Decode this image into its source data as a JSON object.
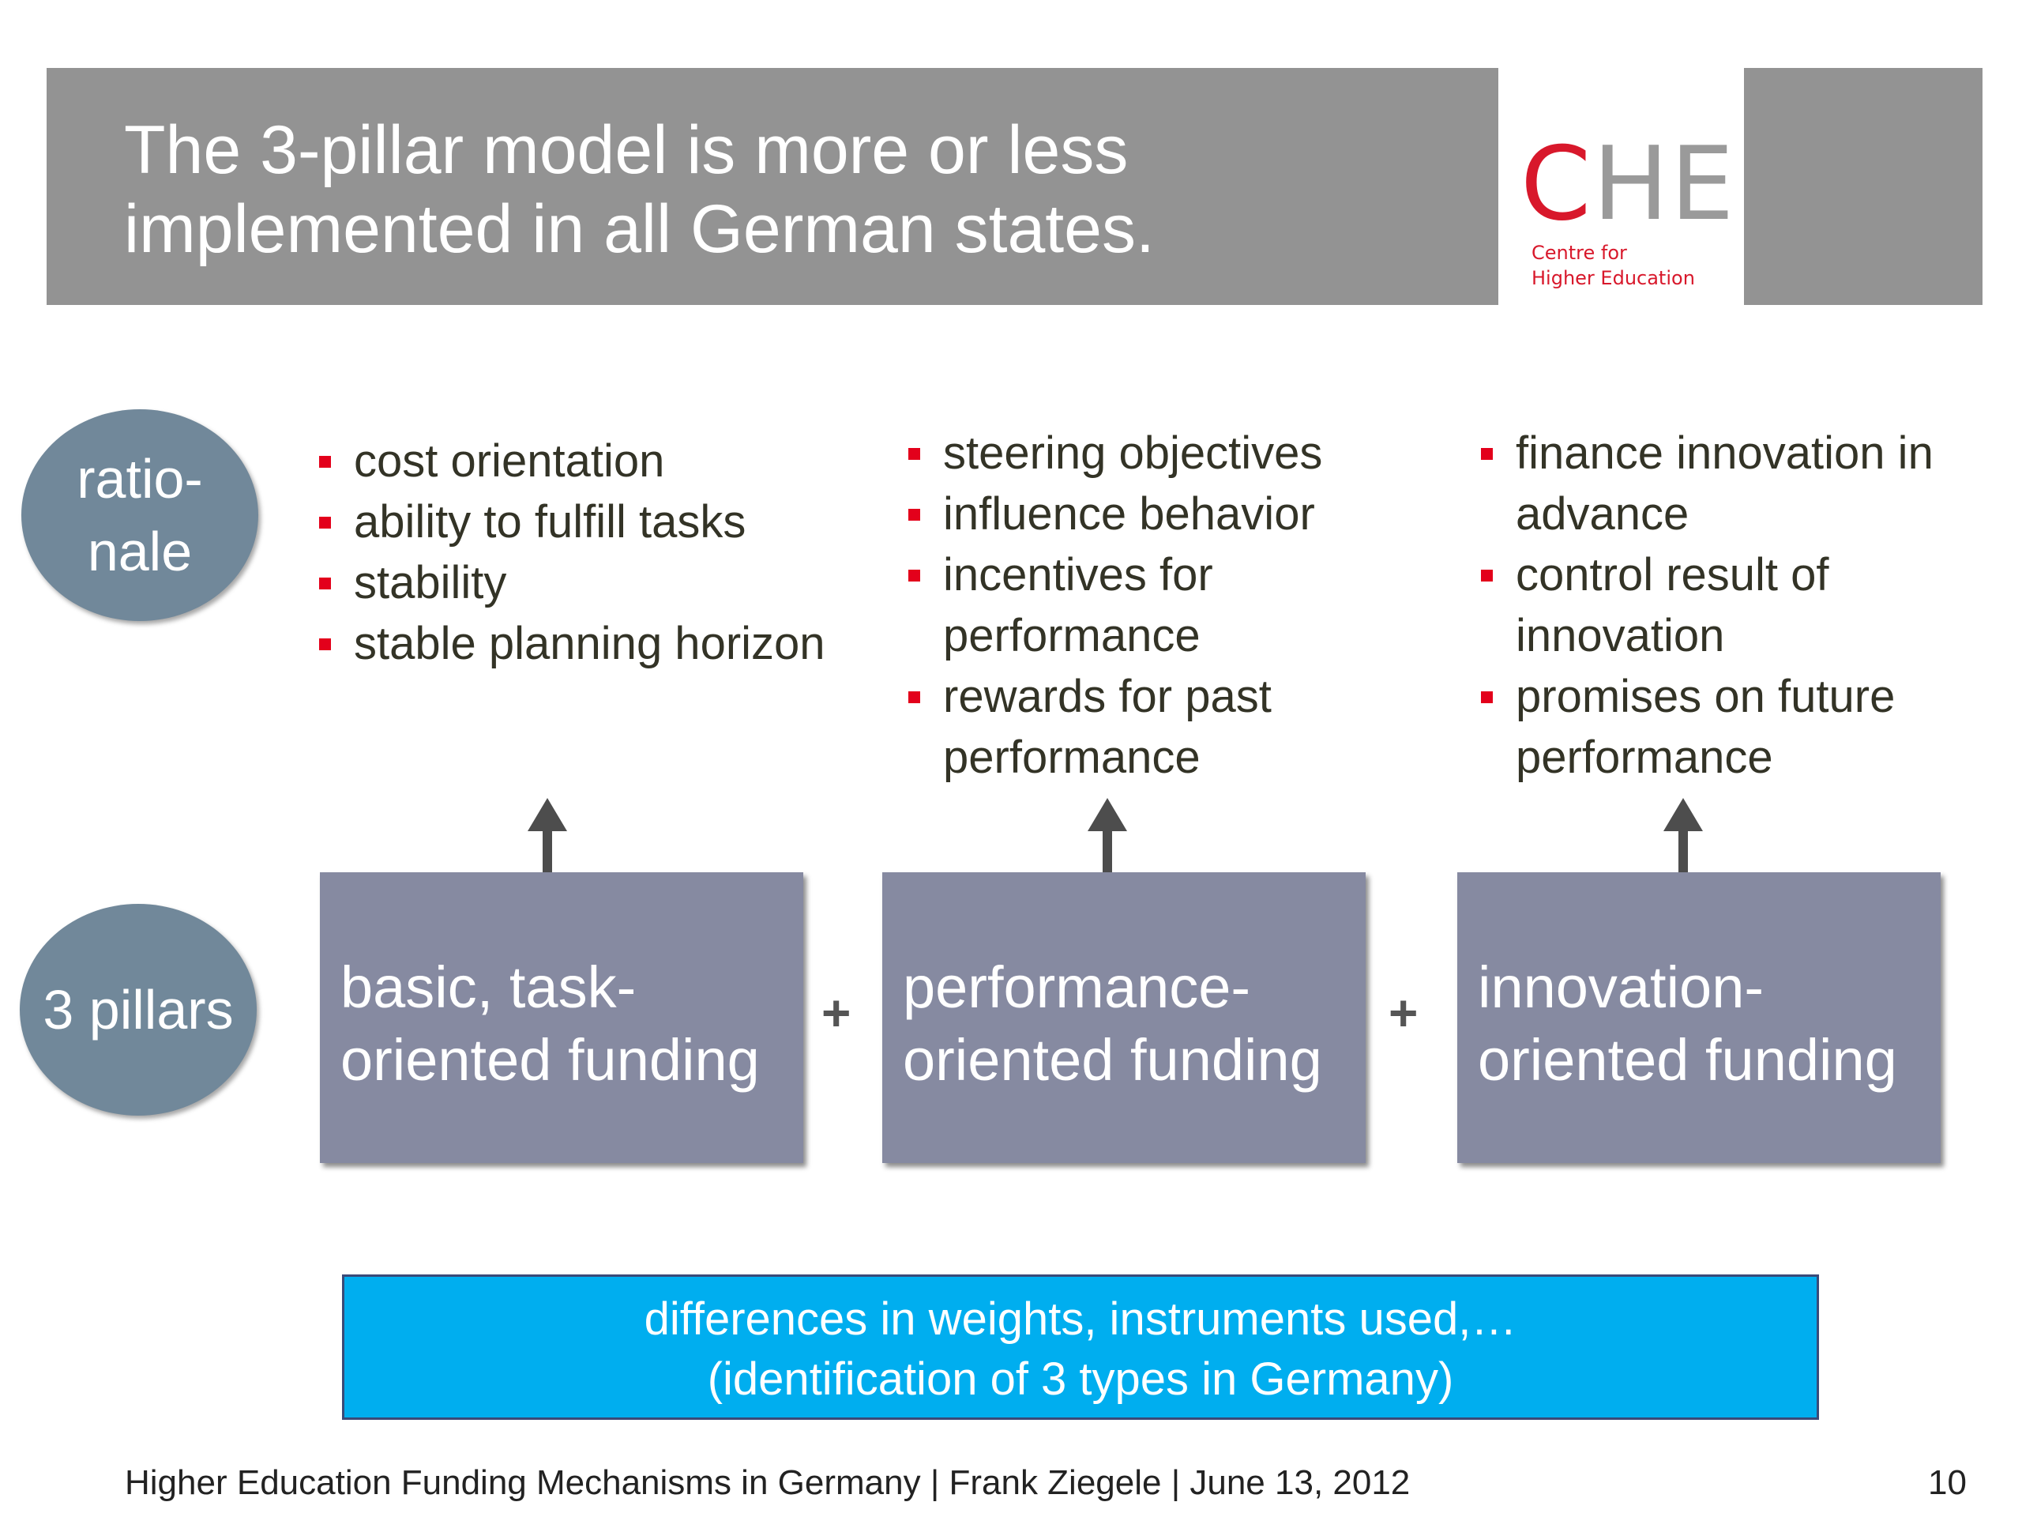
{
  "title": {
    "line1": "The 3-pillar model is more or less",
    "line2": "implemented in all German states."
  },
  "logo": {
    "mark_c": "C",
    "mark_he": "HE",
    "sub_line1": "Centre for",
    "sub_line2": "Higher Education"
  },
  "rationale_label": {
    "line1": "ratio-",
    "line2": "nale"
  },
  "pillars_label": "3 pillars",
  "rationale": [
    [
      "cost orientation",
      "ability to fulfill tasks",
      "stability",
      "stable planning horizon"
    ],
    [
      "steering objectives",
      "influence behavior",
      "incentives for performance",
      "rewards for past performance"
    ],
    [
      "finance innovation in advance",
      "control result of innovation",
      "promises on future performance"
    ]
  ],
  "pillars": [
    {
      "line1": "basic, task-",
      "line2": "oriented funding"
    },
    {
      "line1": "performance-",
      "line2": "oriented funding"
    },
    {
      "line1": "innovation-",
      "line2": "oriented funding"
    }
  ],
  "plus_sign": "+",
  "differences": {
    "line1": "differences in weights, instruments used,…",
    "line2": "(identification of 3 types in Germany)"
  },
  "footer": "Higher Education Funding Mechanisms in Germany | Frank Ziegele | June 13, 2012",
  "page_number": "10",
  "colors": {
    "title_bar": "#939393",
    "brand_red": "#d8182b",
    "bullet_red": "#e3001b",
    "circle": "#71889a",
    "pillar": "#868aa1",
    "highlight_box": "#00aeef"
  }
}
